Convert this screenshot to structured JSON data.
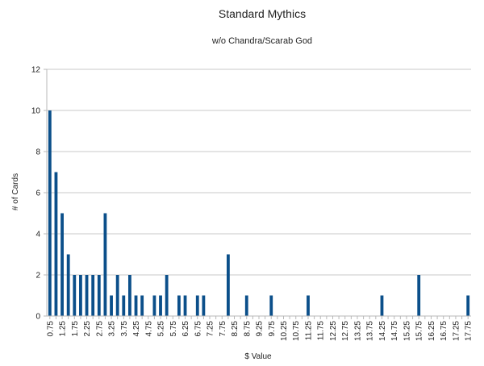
{
  "chart_data": {
    "type": "bar",
    "title": "Standard Mythics",
    "subtitle": "w/o Chandra/Scarab God",
    "xlabel": "$ Value",
    "ylabel": "# of Cards",
    "ylim": [
      0,
      12
    ],
    "yticks": [
      0,
      2,
      4,
      6,
      8,
      10,
      12
    ],
    "grid": true,
    "legend": "none",
    "bar_color": "#0b4f8a",
    "categories": [
      "0.75",
      "1",
      "1.25",
      "1.5",
      "1.75",
      "2",
      "2.25",
      "2.5",
      "2.75",
      "3",
      "3.25",
      "3.5",
      "3.75",
      "4",
      "4.25",
      "4.5",
      "4.75",
      "5",
      "5.25",
      "5.5",
      "5.75",
      "6",
      "6.25",
      "6.5",
      "6.75",
      "7",
      "7.25",
      "7.5",
      "7.75",
      "8",
      "8.25",
      "8.5",
      "8.75",
      "9",
      "9.25",
      "9.5",
      "9.75",
      "10",
      "10.25",
      "10.5",
      "10.75",
      "11",
      "11.25",
      "11.5",
      "11.75",
      "12",
      "12.25",
      "12.5",
      "12.75",
      "13",
      "13.25",
      "13.5",
      "13.75",
      "14",
      "14.25",
      "14.5",
      "14.75",
      "15",
      "15.25",
      "15.5",
      "15.75",
      "16",
      "16.25",
      "16.5",
      "16.75",
      "17",
      "17.25",
      "17.5",
      "17.75"
    ],
    "xticklabels": [
      "0.75",
      "1.25",
      "1.75",
      "2.25",
      "2.75",
      "3.25",
      "3.75",
      "4.25",
      "4.75",
      "5.25",
      "5.75",
      "6.25",
      "6.75",
      "7.25",
      "7.75",
      "8.25",
      "8.75",
      "9.25",
      "9.75",
      "10.25",
      "10.75",
      "11.25",
      "11.75",
      "12.25",
      "12.75",
      "13.25",
      "13.75",
      "14.25",
      "14.75",
      "15.25",
      "15.75",
      "16.25",
      "16.75",
      "17.25",
      "17.75"
    ],
    "values": [
      10,
      7,
      5,
      3,
      2,
      2,
      2,
      2,
      2,
      5,
      1,
      2,
      1,
      2,
      1,
      1,
      0,
      1,
      1,
      2,
      0,
      1,
      1,
      0,
      1,
      1,
      0,
      0,
      0,
      3,
      0,
      0,
      1,
      0,
      0,
      0,
      1,
      0,
      0,
      0,
      0,
      0,
      1,
      0,
      0,
      0,
      0,
      0,
      0,
      0,
      0,
      0,
      0,
      0,
      1,
      0,
      0,
      0,
      0,
      0,
      2,
      0,
      0,
      0,
      0,
      0,
      0,
      0,
      1
    ]
  }
}
